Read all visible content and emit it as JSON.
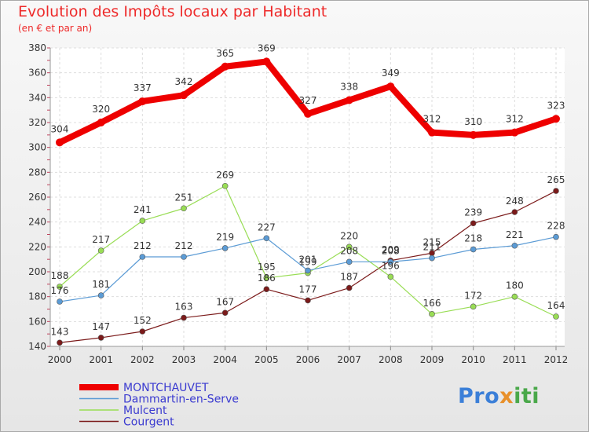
{
  "chart_data": {
    "type": "line",
    "title": "Evolution des Impôts locaux par Habitant",
    "subtitle": "(en € et par an)",
    "xlabel": "",
    "ylabel": "",
    "x": [
      "2000",
      "2001",
      "2002",
      "2003",
      "2004",
      "2005",
      "2006",
      "2007",
      "2008",
      "2009",
      "2010",
      "2011",
      "2012"
    ],
    "ylim": [
      140,
      380
    ],
    "yticks": [
      140,
      160,
      180,
      200,
      220,
      240,
      260,
      280,
      300,
      320,
      340,
      360,
      380
    ],
    "grid": true,
    "series": [
      {
        "name": "MONTCHAUVET",
        "color": "#ee0000",
        "values": [
          304,
          320,
          337,
          342,
          365,
          369,
          327,
          338,
          349,
          312,
          310,
          312,
          323
        ]
      },
      {
        "name": "Dammartin-en-Serve",
        "color": "#5b9bd5",
        "values": [
          176,
          181,
          212,
          212,
          219,
          227,
          201,
          208,
          208,
          211,
          218,
          221,
          228
        ]
      },
      {
        "name": "Mulcent",
        "color": "#99dd55",
        "values": [
          188,
          217,
          241,
          251,
          269,
          195,
          199,
          220,
          196,
          166,
          172,
          180,
          164
        ]
      },
      {
        "name": "Courgent",
        "color": "#7b1a1a",
        "values": [
          143,
          147,
          152,
          163,
          167,
          186,
          177,
          187,
          209,
          215,
          239,
          248,
          265
        ]
      }
    ]
  },
  "logo": {
    "part1": "Pro",
    "part2": "x",
    "part3": "iti"
  }
}
